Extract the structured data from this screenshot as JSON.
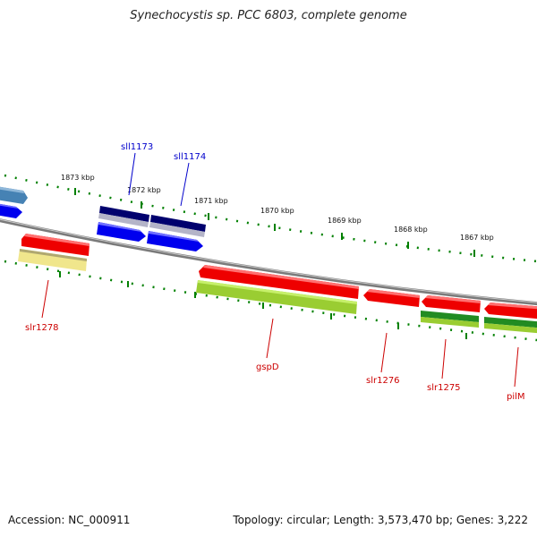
{
  "title": "Synechocystis sp. PCC 6803, complete genome",
  "footer": {
    "accession": "Accession: NC_000911",
    "topology": "Topology: circular; Length: 3,573,470 bp; Genes: 3,222"
  },
  "scale_labels": [
    "1873 kbp",
    "1872 kbp",
    "1871 kbp",
    "1870 kbp",
    "1869 kbp",
    "1868 kbp",
    "1867 kbp"
  ],
  "gene_labels": {
    "sll1173": "sll1173",
    "sll1174": "sll1174",
    "slr1278": "slr1278",
    "gspD": "gspD",
    "slr1276": "slr1276",
    "slr1275": "slr1275",
    "pilM": "pilM"
  },
  "colors": {
    "backbone": "#808080",
    "cds_forward": "#ff0000",
    "cds_reverse": "#0000ff",
    "blast_dark_blue": "#00006e",
    "blast_steel_blue": "#4682b4",
    "blast_khaki": "#f0e68c",
    "blast_yellowgreen": "#9acd32",
    "blast_green": "#228b22",
    "tick": "#008000",
    "label_forward": "#cc0000",
    "label_reverse": "#0000cc"
  }
}
